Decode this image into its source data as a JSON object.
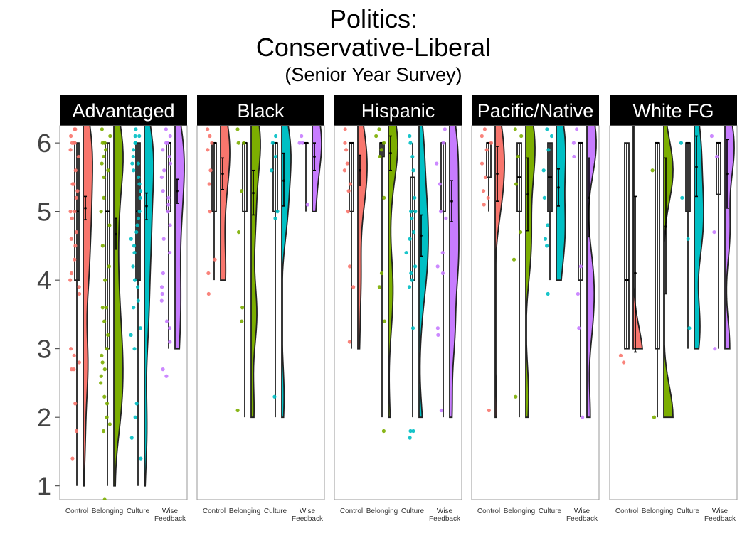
{
  "title": {
    "line1": "Politics:",
    "line2": "Conservative-Liberal",
    "line3": "(Senior Year Survey)"
  },
  "colors": {
    "Control": "#F8766D",
    "Belonging": "#7CAE00",
    "Culture": "#00BFC4",
    "Wise Feedback": "#C77CFF"
  },
  "chart_data": {
    "type": "raincloud",
    "facets": [
      "Advantaged",
      "Black",
      "Hispanic",
      "Pacific/Native",
      "White FG"
    ],
    "categories": [
      "Control",
      "Belonging",
      "Culture",
      "Wise Feedback"
    ],
    "category_labels": [
      [
        "Control"
      ],
      [
        "Belonging"
      ],
      [
        "Culture"
      ],
      [
        "Wise",
        "Feedback"
      ]
    ],
    "y_ticks": [
      1,
      2,
      3,
      4,
      5,
      6
    ],
    "ylim": [
      0.8,
      6.25
    ],
    "grid": false,
    "panels": [
      {
        "facet": "Advantaged",
        "groups": [
          {
            "category": "Control",
            "box": {
              "min": 1,
              "q1": 4,
              "median": 5,
              "q3": 6,
              "max": 6
            },
            "mean": 5.05,
            "ci": [
              4.88,
              5.22
            ],
            "violin_min": 1,
            "points": [
              6.2,
              6.2,
              6.1,
              6.0,
              6.0,
              6.0,
              5.9,
              5.8,
              5.6,
              5.4,
              5.4,
              5.3,
              5.2,
              5.0,
              5.0,
              4.9,
              4.7,
              4.6,
              4.5,
              4.3,
              4.1,
              4.0,
              3.9,
              3.8,
              3.0,
              2.9,
              2.8,
              2.7,
              2.7,
              2.2,
              1.8,
              1.4
            ]
          },
          {
            "category": "Belonging",
            "box": {
              "min": 1,
              "q1": 3,
              "median": 5,
              "q3": 6,
              "max": 6
            },
            "mean": 4.67,
            "ci": [
              4.45,
              4.9
            ],
            "violin_min": 1,
            "points": [
              6.2,
              6.1,
              6.0,
              6.0,
              5.9,
              5.8,
              5.7,
              5.6,
              5.5,
              5.2,
              5.0,
              4.8,
              4.5,
              4.2,
              4.0,
              3.6,
              3.6,
              3.4,
              3.2,
              3.0,
              2.9,
              2.8,
              2.7,
              2.6,
              2.5,
              2.3,
              2.2,
              2.0,
              1.9,
              1.8,
              0.8
            ]
          },
          {
            "category": "Culture",
            "box": {
              "min": 1,
              "q1": 4,
              "median": 5,
              "q3": 6,
              "max": 6
            },
            "mean": 5.08,
            "ci": [
              4.88,
              5.27
            ],
            "violin_min": 1,
            "points": [
              6.2,
              6.1,
              6.1,
              6.0,
              6.0,
              5.9,
              5.8,
              5.7,
              5.7,
              5.6,
              5.5,
              5.4,
              5.3,
              5.2,
              5.0,
              4.9,
              4.8,
              4.7,
              4.6,
              4.5,
              4.4,
              4.2,
              4.0,
              3.9,
              3.7,
              3.6,
              3.3,
              3.2,
              3.0,
              2.2,
              2.0,
              1.7,
              1.4
            ]
          },
          {
            "category": "Wise Feedback",
            "box": {
              "min": 3,
              "q1": 5,
              "median": 6,
              "q3": 6,
              "max": 6
            },
            "mean": 5.3,
            "ci": [
              5.12,
              5.47
            ],
            "violin_min": 3,
            "points": [
              6.2,
              6.1,
              6.0,
              6.0,
              5.9,
              5.8,
              5.7,
              5.6,
              5.5,
              5.3,
              5.2,
              5.1,
              5.0,
              4.8,
              4.6,
              4.4,
              4.1,
              3.9,
              3.8,
              3.7,
              3.4,
              3.3,
              3.1,
              2.7,
              2.6
            ]
          }
        ]
      },
      {
        "facet": "Black",
        "groups": [
          {
            "category": "Control",
            "box": {
              "min": 4,
              "q1": 5,
              "median": 6,
              "q3": 6,
              "max": 6
            },
            "mean": 5.55,
            "ci": [
              5.32,
              5.78
            ],
            "violin_min": 4,
            "points": [
              6.2,
              6.1,
              6.0,
              5.9,
              5.6,
              5.4,
              5.0,
              4.3,
              4.1,
              3.8
            ]
          },
          {
            "category": "Belonging",
            "box": {
              "min": 2,
              "q1": 5,
              "median": 6,
              "q3": 6,
              "max": 6
            },
            "mean": 5.27,
            "ci": [
              4.95,
              5.6
            ],
            "violin_min": 2,
            "points": [
              6.2,
              6.0,
              6.0,
              5.3,
              4.7,
              3.6,
              3.4,
              2.1
            ]
          },
          {
            "category": "Culture",
            "box": {
              "min": 2,
              "q1": 5,
              "median": 6,
              "q3": 6,
              "max": 6
            },
            "mean": 5.45,
            "ci": [
              5.08,
              5.85
            ],
            "violin_min": 2,
            "points": [
              6.1,
              6.0,
              5.8,
              5.6,
              5.0,
              4.9,
              2.3
            ]
          },
          {
            "category": "Wise Feedback",
            "box": {
              "min": 5,
              "q1": 6,
              "median": 6,
              "q3": 6,
              "max": 6
            },
            "mean": 5.8,
            "ci": [
              5.6,
              6.0
            ],
            "violin_min": 5,
            "points": [
              6.1,
              6.0,
              6.0,
              5.1
            ]
          }
        ]
      },
      {
        "facet": "Hispanic",
        "groups": [
          {
            "category": "Control",
            "box": {
              "min": 3,
              "q1": 5,
              "median": 6,
              "q3": 6,
              "max": 6
            },
            "mean": 5.6,
            "ci": [
              5.38,
              5.82
            ],
            "violin_min": 3,
            "points": [
              6.2,
              6.0,
              5.9,
              5.7,
              5.6,
              5.4,
              5.3,
              5.0,
              4.2,
              3.9,
              3.1
            ]
          },
          {
            "category": "Belonging",
            "box": {
              "min": 2,
              "q1": 5.8,
              "median": 6,
              "q3": 6,
              "max": 6
            },
            "mean": 5.85,
            "ci": [
              5.6,
              6.1
            ],
            "violin_min": 2,
            "points": [
              6.2,
              6.1,
              6.0,
              5.9,
              5.8,
              5.2,
              4.1,
              3.9,
              3.4,
              1.8
            ]
          },
          {
            "category": "Culture",
            "box": {
              "min": 2,
              "q1": 4,
              "median": 5,
              "q3": 5.5,
              "max": 6
            },
            "mean": 4.65,
            "ci": [
              4.35,
              4.95
            ],
            "violin_min": 2,
            "points": [
              6.1,
              6.0,
              5.8,
              5.6,
              5.2,
              5.0,
              5.0,
              4.9,
              4.7,
              4.6,
              4.4,
              4.2,
              4.1,
              4.0,
              3.9,
              3.3,
              1.8,
              1.8,
              1.7
            ]
          },
          {
            "category": "Wise Feedback",
            "box": {
              "min": 2,
              "q1": 5,
              "median": 6,
              "q3": 6,
              "max": 6
            },
            "mean": 5.15,
            "ci": [
              4.85,
              5.45
            ],
            "violin_min": 2,
            "points": [
              6.2,
              6.0,
              5.7,
              5.4,
              5.0,
              4.9,
              4.4,
              4.2,
              4.1,
              3.3,
              3.2,
              2.1
            ]
          }
        ]
      },
      {
        "facet": "Pacific/Native",
        "groups": [
          {
            "category": "Control",
            "box": {
              "min": 5,
              "q1": 5.5,
              "median": 6,
              "q3": 6,
              "max": 6
            },
            "mean": 5.55,
            "ci": [
              5.15,
              5.95
            ],
            "violin_min": 2,
            "points": [
              6.2,
              6.1,
              6.0,
              5.9,
              5.7,
              5.5,
              5.3,
              5.2,
              5.1,
              2.1
            ]
          },
          {
            "category": "Belonging",
            "box": {
              "min": 2,
              "q1": 5,
              "median": 5.5,
              "q3": 6,
              "max": 6
            },
            "mean": 5.25,
            "ci": [
              4.72,
              5.78
            ],
            "violin_min": 2,
            "points": [
              6.2,
              6.1,
              5.8,
              5.4,
              4.7,
              4.3,
              2.3
            ]
          },
          {
            "category": "Culture",
            "box": {
              "min": 4,
              "q1": 5,
              "median": 5.5,
              "q3": 6,
              "max": 6
            },
            "mean": 5.35,
            "ci": [
              5.08,
              5.62
            ],
            "violin_min": 4,
            "points": [
              6.2,
              6.1,
              5.9,
              5.6,
              5.2,
              4.8,
              4.6,
              4.5,
              3.8
            ]
          },
          {
            "category": "Wise Feedback",
            "box": {
              "min": 2,
              "q1": 4,
              "median": 6,
              "q3": 6,
              "max": 6
            },
            "mean": 5.2,
            "ci": [
              4.63,
              5.78
            ],
            "violin_min": 2,
            "points": [
              6.2,
              6.0,
              5.8,
              4.2,
              3.8,
              3.3,
              2.0
            ]
          }
        ]
      },
      {
        "facet": "White FG",
        "groups": [
          {
            "category": "Control",
            "box": {
              "min": 3,
              "q1": 3,
              "median": 4,
              "q3": 6,
              "max": 6
            },
            "mean": 4.1,
            "ci": [
              2.95,
              5.22
            ],
            "violin_min": 3,
            "points": [
              2.9,
              2.8
            ]
          },
          {
            "category": "Belonging",
            "box": {
              "min": 2,
              "q1": 3,
              "median": 6,
              "q3": 6,
              "max": 6
            },
            "mean": 4.78,
            "ci": [
              3.8,
              5.78
            ],
            "violin_min": 2,
            "points": [
              5.6,
              2.0
            ]
          },
          {
            "category": "Culture",
            "box": {
              "min": 3,
              "q1": 5,
              "median": 6,
              "q3": 6,
              "max": 6
            },
            "mean": 5.65,
            "ci": [
              5.22,
              6.1
            ],
            "violin_min": 3,
            "points": [
              6.0,
              5.2,
              4.6,
              3.3
            ]
          },
          {
            "category": "Wise Feedback",
            "box": {
              "min": 3,
              "q1": 5.25,
              "median": 6,
              "q3": 6,
              "max": 6
            },
            "mean": 5.55,
            "ci": [
              5.05,
              6.05
            ],
            "violin_min": 3,
            "points": [
              6.1,
              5.8,
              4.7,
              3.0
            ]
          }
        ]
      }
    ]
  }
}
